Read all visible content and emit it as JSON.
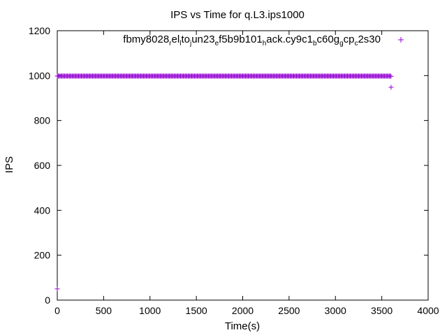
{
  "chart_data": {
    "type": "scatter",
    "title": "IPS vs Time for q.L3.ips1000",
    "xlabel": "Time(s)",
    "ylabel": "IPS",
    "xlim": [
      0,
      4000
    ],
    "ylim": [
      0,
      1200
    ],
    "xticks": [
      0,
      500,
      1000,
      1500,
      2000,
      2500,
      3000,
      3500,
      4000
    ],
    "yticks": [
      0,
      200,
      400,
      600,
      800,
      1000,
      1200
    ],
    "grid": false,
    "legend_position": "top-right",
    "series": [
      {
        "name": "fbmy8028_rel_lto_jun23_e f5b9b101_hack.cy9c1_bc60g_gcp_c2s30",
        "legend_parts": [
          {
            "t": "fbmy8028",
            "sub": false
          },
          {
            "t": "r",
            "sub": true
          },
          {
            "t": "el",
            "sub": false
          },
          {
            "t": "l",
            "sub": true
          },
          {
            "t": "to",
            "sub": false
          },
          {
            "t": "j",
            "sub": true
          },
          {
            "t": "un23",
            "sub": false
          },
          {
            "t": "e",
            "sub": true
          },
          {
            "t": "f5b9b101",
            "sub": false
          },
          {
            "t": "h",
            "sub": true
          },
          {
            "t": "ack.cy9c1",
            "sub": false
          },
          {
            "t": "b",
            "sub": true
          },
          {
            "t": "c60g",
            "sub": false
          },
          {
            "t": "g",
            "sub": true
          },
          {
            "t": "cp",
            "sub": false
          },
          {
            "t": "c",
            "sub": true
          },
          {
            "t": "2s30",
            "sub": false
          }
        ],
        "color": "#9400d3",
        "marker": "plus",
        "dense_band": {
          "x_start": 0,
          "x_end": 3590,
          "x_step": 10,
          "y": 998
        },
        "points": [
          {
            "x": 0,
            "y": 50
          },
          {
            "x": 3600,
            "y": 997
          },
          {
            "x": 3600,
            "y": 948
          }
        ]
      }
    ]
  }
}
